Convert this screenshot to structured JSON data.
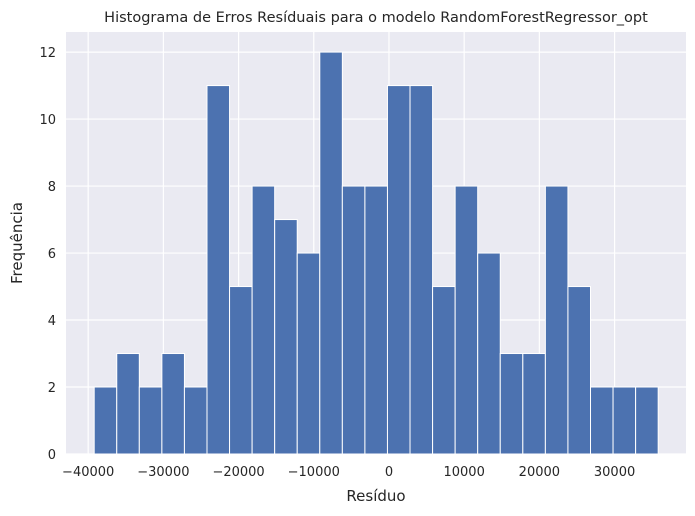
{
  "chart_data": {
    "type": "bar",
    "title": "Histograma de Erros Resíduais para o modelo RandomForestRegressor_opt",
    "xlabel": "Resíduo",
    "ylabel": "Frequência",
    "bins": 25,
    "bin_start": -39200,
    "bin_width": 3000,
    "values": [
      2,
      3,
      2,
      3,
      2,
      11,
      5,
      8,
      7,
      6,
      12,
      8,
      8,
      11,
      11,
      5,
      8,
      6,
      3,
      3,
      8,
      5,
      2,
      2,
      2
    ],
    "xlim": [
      -42950,
      39500
    ],
    "ylim": [
      0,
      12.6
    ],
    "x_ticks": [
      -40000,
      -30000,
      -20000,
      -10000,
      0,
      10000,
      20000,
      30000
    ],
    "x_tick_labels": [
      "−40000",
      "−30000",
      "−20000",
      "−10000",
      "0",
      "10000",
      "20000",
      "30000"
    ],
    "y_ticks": [
      0,
      2,
      4,
      6,
      8,
      10,
      12
    ],
    "y_tick_labels": [
      "0",
      "2",
      "4",
      "6",
      "8",
      "10",
      "12"
    ],
    "grid": true,
    "bar_color": "#4c72b0",
    "background_color": "#eaeaf2",
    "grid_color": "#ffffff"
  }
}
